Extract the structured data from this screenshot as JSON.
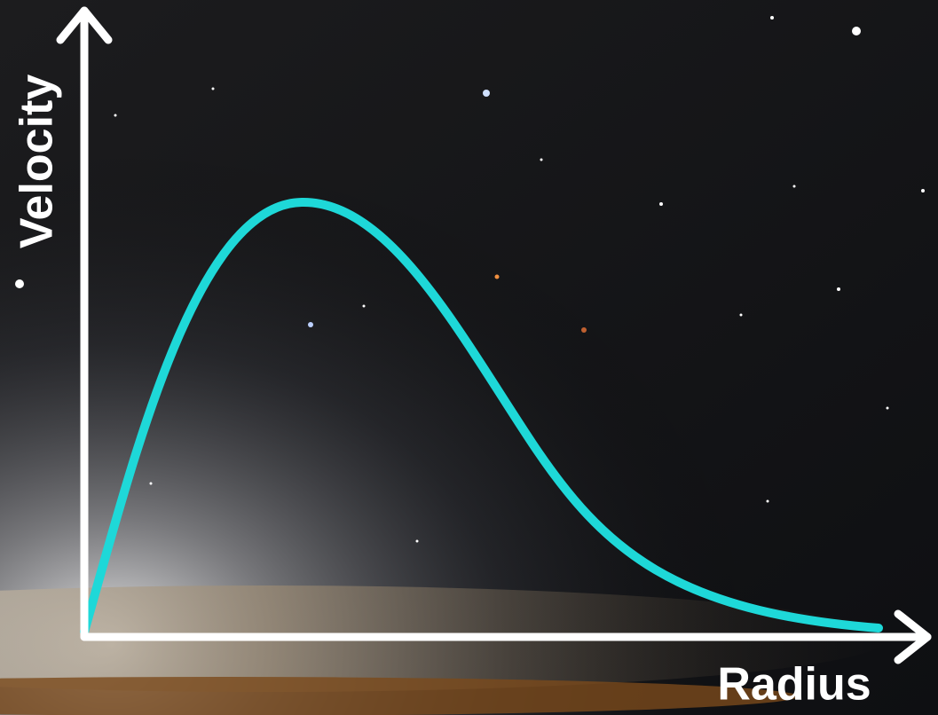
{
  "axes": {
    "y_label": "Velocity",
    "x_label": "Radius"
  }
}
